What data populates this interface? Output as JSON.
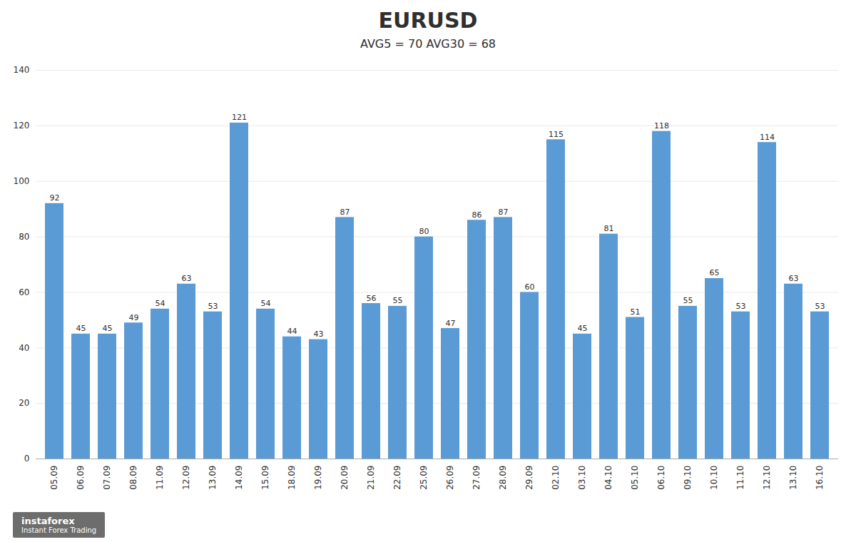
{
  "chart_data": {
    "type": "bar",
    "title": "EURUSD",
    "subtitle": "AVG5 = 70 AVG30 = 68",
    "categories": [
      "05.09",
      "06.09",
      "07.09",
      "08.09",
      "11.09",
      "12.09",
      "13.09",
      "14.09",
      "15.09",
      "18.09",
      "19.09",
      "20.09",
      "21.09",
      "22.09",
      "25.09",
      "26.09",
      "27.09",
      "28.09",
      "29.09",
      "02.10",
      "03.10",
      "04.10",
      "05.10",
      "06.10",
      "09.10",
      "10.10",
      "11.10",
      "12.10",
      "13.10",
      "16.10"
    ],
    "values": [
      92,
      45,
      45,
      49,
      54,
      63,
      53,
      121,
      54,
      44,
      43,
      87,
      56,
      55,
      80,
      47,
      86,
      87,
      60,
      115,
      45,
      81,
      51,
      118,
      55,
      65,
      53,
      114,
      63,
      53
    ],
    "color": "#5B9BD5",
    "ylim": [
      0,
      140
    ],
    "yticks": [
      0,
      20,
      40,
      60,
      80,
      100,
      120,
      140
    ],
    "grid": true,
    "data_labels": true,
    "annotations": [
      "instaforex",
      "Instant Forex Trading"
    ]
  }
}
